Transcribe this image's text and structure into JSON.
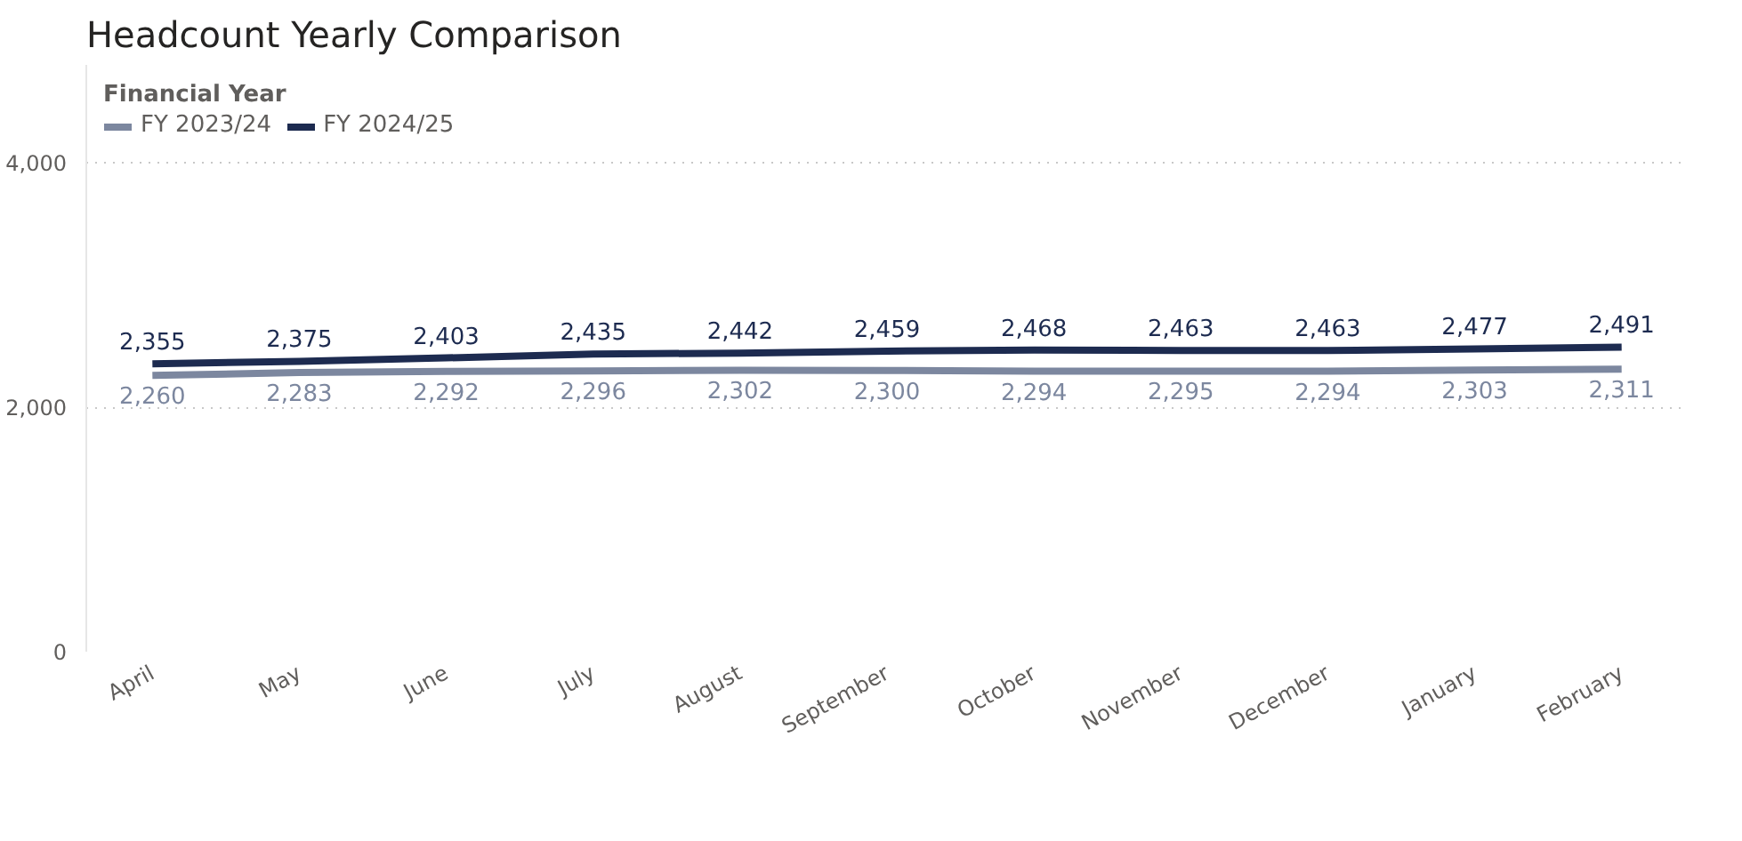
{
  "chart_data": {
    "type": "line",
    "title": "Headcount Yearly Comparison",
    "legend_title": "Financial Year",
    "categories": [
      "April",
      "May",
      "June",
      "July",
      "August",
      "September",
      "October",
      "November",
      "December",
      "January",
      "February"
    ],
    "series": [
      {
        "name": "FY 2023/24",
        "color": "#7c879f",
        "values": [
          2260,
          2283,
          2292,
          2296,
          2302,
          2300,
          2294,
          2295,
          2294,
          2303,
          2311
        ],
        "value_labels": [
          "2,260",
          "2,283",
          "2,292",
          "2,296",
          "2,302",
          "2,300",
          "2,294",
          "2,295",
          "2,294",
          "2,303",
          "2,311"
        ]
      },
      {
        "name": "FY 2024/25",
        "color": "#1d2b50",
        "values": [
          2355,
          2375,
          2403,
          2435,
          2442,
          2459,
          2468,
          2463,
          2463,
          2477,
          2491
        ],
        "value_labels": [
          "2,355",
          "2,375",
          "2,403",
          "2,435",
          "2,442",
          "2,459",
          "2,468",
          "2,463",
          "2,463",
          "2,477",
          "2,491"
        ]
      }
    ],
    "ylim": [
      0,
      4800
    ],
    "yticks": [
      {
        "value": 0,
        "label": "0"
      },
      {
        "value": 2000,
        "label": "2,000"
      },
      {
        "value": 4000,
        "label": "4,000"
      }
    ],
    "grid": "y",
    "legend": "top left",
    "marker": "none",
    "line_style": "solid"
  }
}
